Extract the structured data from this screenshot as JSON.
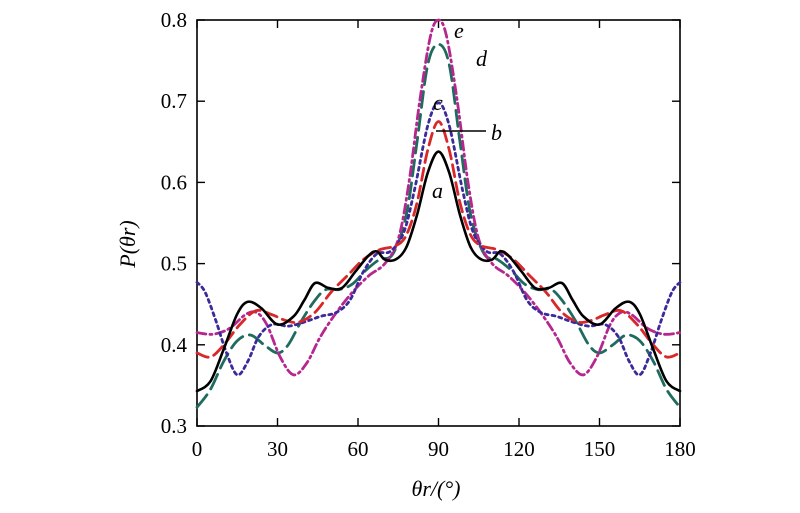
{
  "chart_data": {
    "type": "line",
    "title": "",
    "xlabel": "θr/(°)",
    "ylabel": "P(θr)",
    "xlim": [
      0,
      180
    ],
    "ylim": [
      0.3,
      0.8
    ],
    "xticks": [
      0,
      30,
      60,
      90,
      120,
      150,
      180
    ],
    "yticks": [
      0.3,
      0.4,
      0.5,
      0.6,
      0.7,
      0.8
    ],
    "xtick_labels": [
      "0",
      "30",
      "60",
      "90",
      "120",
      "150",
      "180"
    ],
    "ytick_labels": [
      "0.3",
      "0.4",
      "0.5",
      "0.6",
      "0.7",
      "0.8"
    ],
    "grid": false,
    "legend": "inline labels near peak",
    "series": [
      {
        "name": "a",
        "color": "#000000",
        "dash": "solid",
        "points": [
          [
            0,
            0.343
          ],
          [
            5,
            0.355
          ],
          [
            10,
            0.395
          ],
          [
            15,
            0.438
          ],
          [
            19,
            0.453
          ],
          [
            24,
            0.445
          ],
          [
            30,
            0.425
          ],
          [
            36,
            0.435
          ],
          [
            40,
            0.455
          ],
          [
            44,
            0.476
          ],
          [
            49,
            0.47
          ],
          [
            54,
            0.47
          ],
          [
            59,
            0.49
          ],
          [
            64,
            0.51
          ],
          [
            67,
            0.515
          ],
          [
            70,
            0.505
          ],
          [
            74,
            0.505
          ],
          [
            78,
            0.52
          ],
          [
            82,
            0.56
          ],
          [
            86,
            0.612
          ],
          [
            90,
            0.638
          ],
          [
            94,
            0.612
          ],
          [
            98,
            0.56
          ],
          [
            102,
            0.52
          ],
          [
            106,
            0.505
          ],
          [
            110,
            0.505
          ],
          [
            113,
            0.515
          ],
          [
            116,
            0.51
          ],
          [
            121,
            0.49
          ],
          [
            126,
            0.47
          ],
          [
            131,
            0.47
          ],
          [
            136,
            0.476
          ],
          [
            140,
            0.455
          ],
          [
            144,
            0.435
          ],
          [
            150,
            0.425
          ],
          [
            156,
            0.445
          ],
          [
            161,
            0.453
          ],
          [
            165,
            0.438
          ],
          [
            170,
            0.395
          ],
          [
            175,
            0.355
          ],
          [
            180,
            0.343
          ]
        ]
      },
      {
        "name": "b",
        "color": "#d8282a",
        "dash": "12,6",
        "points": [
          [
            0,
            0.39
          ],
          [
            5,
            0.385
          ],
          [
            10,
            0.4
          ],
          [
            16,
            0.425
          ],
          [
            22,
            0.442
          ],
          [
            28,
            0.437
          ],
          [
            33,
            0.43
          ],
          [
            38,
            0.428
          ],
          [
            44,
            0.44
          ],
          [
            50,
            0.465
          ],
          [
            56,
            0.485
          ],
          [
            62,
            0.505
          ],
          [
            68,
            0.517
          ],
          [
            74,
            0.522
          ],
          [
            78,
            0.535
          ],
          [
            82,
            0.575
          ],
          [
            86,
            0.64
          ],
          [
            90,
            0.675
          ],
          [
            94,
            0.64
          ],
          [
            98,
            0.575
          ],
          [
            102,
            0.535
          ],
          [
            106,
            0.522
          ],
          [
            112,
            0.517
          ],
          [
            118,
            0.505
          ],
          [
            124,
            0.485
          ],
          [
            130,
            0.465
          ],
          [
            136,
            0.44
          ],
          [
            142,
            0.428
          ],
          [
            147,
            0.43
          ],
          [
            152,
            0.437
          ],
          [
            158,
            0.442
          ],
          [
            164,
            0.425
          ],
          [
            170,
            0.4
          ],
          [
            175,
            0.385
          ],
          [
            180,
            0.39
          ]
        ]
      },
      {
        "name": "c",
        "color": "#3a2a9a",
        "dash": "3,4",
        "points": [
          [
            0,
            0.477
          ],
          [
            3,
            0.465
          ],
          [
            7,
            0.43
          ],
          [
            11,
            0.39
          ],
          [
            15,
            0.363
          ],
          [
            19,
            0.38
          ],
          [
            23,
            0.41
          ],
          [
            28,
            0.425
          ],
          [
            34,
            0.423
          ],
          [
            40,
            0.428
          ],
          [
            46,
            0.435
          ],
          [
            52,
            0.44
          ],
          [
            57,
            0.455
          ],
          [
            62,
            0.49
          ],
          [
            67,
            0.512
          ],
          [
            72,
            0.515
          ],
          [
            77,
            0.538
          ],
          [
            81,
            0.59
          ],
          [
            86,
            0.67
          ],
          [
            90,
            0.698
          ],
          [
            94,
            0.67
          ],
          [
            99,
            0.59
          ],
          [
            103,
            0.538
          ],
          [
            108,
            0.515
          ],
          [
            113,
            0.512
          ],
          [
            118,
            0.49
          ],
          [
            123,
            0.455
          ],
          [
            128,
            0.44
          ],
          [
            134,
            0.435
          ],
          [
            140,
            0.428
          ],
          [
            146,
            0.423
          ],
          [
            152,
            0.425
          ],
          [
            157,
            0.41
          ],
          [
            161,
            0.38
          ],
          [
            165,
            0.363
          ],
          [
            169,
            0.39
          ],
          [
            173,
            0.43
          ],
          [
            177,
            0.465
          ],
          [
            180,
            0.477
          ]
        ]
      },
      {
        "name": "d",
        "color": "#1f6b5e",
        "dash": "16,7",
        "points": [
          [
            0,
            0.323
          ],
          [
            5,
            0.345
          ],
          [
            10,
            0.38
          ],
          [
            15,
            0.405
          ],
          [
            20,
            0.412
          ],
          [
            25,
            0.4
          ],
          [
            30,
            0.39
          ],
          [
            34,
            0.4
          ],
          [
            39,
            0.43
          ],
          [
            44,
            0.455
          ],
          [
            48,
            0.468
          ],
          [
            53,
            0.468
          ],
          [
            58,
            0.475
          ],
          [
            63,
            0.492
          ],
          [
            68,
            0.505
          ],
          [
            73,
            0.512
          ],
          [
            78,
            0.56
          ],
          [
            82,
            0.65
          ],
          [
            86,
            0.745
          ],
          [
            90,
            0.77
          ],
          [
            94,
            0.745
          ],
          [
            98,
            0.65
          ],
          [
            102,
            0.56
          ],
          [
            107,
            0.512
          ],
          [
            112,
            0.505
          ],
          [
            117,
            0.492
          ],
          [
            122,
            0.475
          ],
          [
            127,
            0.468
          ],
          [
            132,
            0.468
          ],
          [
            136,
            0.455
          ],
          [
            141,
            0.43
          ],
          [
            146,
            0.4
          ],
          [
            150,
            0.39
          ],
          [
            155,
            0.4
          ],
          [
            160,
            0.412
          ],
          [
            165,
            0.405
          ],
          [
            170,
            0.38
          ],
          [
            175,
            0.345
          ],
          [
            180,
            0.323
          ]
        ]
      },
      {
        "name": "e",
        "color": "#b5278e",
        "dash": "9,4,2,4",
        "points": [
          [
            0,
            0.415
          ],
          [
            6,
            0.413
          ],
          [
            12,
            0.42
          ],
          [
            18,
            0.437
          ],
          [
            22,
            0.44
          ],
          [
            26,
            0.425
          ],
          [
            31,
            0.385
          ],
          [
            36,
            0.363
          ],
          [
            41,
            0.378
          ],
          [
            46,
            0.41
          ],
          [
            52,
            0.44
          ],
          [
            58,
            0.465
          ],
          [
            64,
            0.485
          ],
          [
            70,
            0.5
          ],
          [
            75,
            0.53
          ],
          [
            79,
            0.6
          ],
          [
            83,
            0.7
          ],
          [
            87,
            0.78
          ],
          [
            90,
            0.8
          ],
          [
            93,
            0.78
          ],
          [
            97,
            0.7
          ],
          [
            101,
            0.6
          ],
          [
            105,
            0.53
          ],
          [
            110,
            0.5
          ],
          [
            116,
            0.485
          ],
          [
            122,
            0.465
          ],
          [
            128,
            0.44
          ],
          [
            134,
            0.41
          ],
          [
            139,
            0.378
          ],
          [
            144,
            0.363
          ],
          [
            149,
            0.385
          ],
          [
            154,
            0.425
          ],
          [
            158,
            0.44
          ],
          [
            162,
            0.437
          ],
          [
            168,
            0.42
          ],
          [
            174,
            0.413
          ],
          [
            180,
            0.415
          ]
        ]
      }
    ]
  }
}
